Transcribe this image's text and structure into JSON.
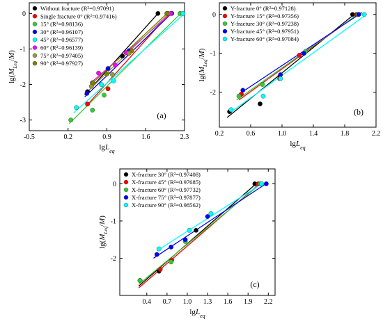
{
  "chart_data": [
    {
      "type": "scatter",
      "panel_label": "(a)",
      "xlabel": "lgLeq",
      "ylabel": "lg(MLeq/M)",
      "xlim": [
        -0.5,
        2.3
      ],
      "ylim": [
        -3.3,
        0.3
      ],
      "xticks": [
        "-0.5",
        "0.2",
        "0.9",
        "1.6",
        "2.3"
      ],
      "yticks": [
        "0",
        "-1",
        "-2",
        "-3"
      ],
      "legend_position": "top-left",
      "series": [
        {
          "name": "Without fracture (R²=0.97091)",
          "color": "#000000",
          "x": [
            0.55,
            0.64,
            1.18,
            1.82
          ],
          "y": [
            -2.2,
            -1.95,
            -1.2,
            0
          ],
          "fit": [
            [
              0.5,
              -2.3
            ],
            [
              1.85,
              0.05
            ]
          ]
        },
        {
          "name": "Single fracture 0° (R²=0.97416)",
          "color": "#ff0000",
          "x": [
            0.55,
            0.92,
            1.28,
            2.0
          ],
          "y": [
            -2.55,
            -2.12,
            -1.12,
            0
          ],
          "fit": [
            [
              0.52,
              -2.62
            ],
            [
              2.05,
              0.03
            ]
          ]
        },
        {
          "name": "15° (R²=0.98136)",
          "color": "#33cc33",
          "x": [
            0.25,
            0.64,
            0.85,
            2.22
          ],
          "y": [
            -3.0,
            -2.72,
            -2.3,
            0
          ],
          "fit": [
            [
              0.22,
              -3.1
            ],
            [
              2.25,
              0.03
            ]
          ]
        },
        {
          "name": "30° (R²=0.96107)",
          "color": "#0000ff",
          "x": [
            0.54,
            0.92,
            1.3,
            2.07
          ],
          "y": [
            -2.25,
            -1.55,
            -1.05,
            0
          ],
          "fit": [
            [
              0.5,
              -2.35
            ],
            [
              2.1,
              0.05
            ]
          ]
        },
        {
          "name": "45° (R²=0.96577)",
          "color": "#00ffff",
          "x": [
            0.35,
            0.8,
            1.02,
            2.27
          ],
          "y": [
            -2.65,
            -2.0,
            -1.9,
            0
          ],
          "fit": [
            [
              0.3,
              -2.8
            ],
            [
              2.3,
              0
            ]
          ]
        },
        {
          "name": "60° (R²=0.96139)",
          "color": "#ff00ff",
          "x": [
            0.75,
            1.05,
            1.25,
            2.05
          ],
          "y": [
            -1.68,
            -1.45,
            -1.1,
            0
          ],
          "fit": [
            [
              0.65,
              -1.9
            ],
            [
              2.1,
              0.05
            ]
          ]
        },
        {
          "name": "75° (R²=0.97405)",
          "color": "#999933",
          "x": [
            0.62,
            1.0,
            1.3,
            2.0
          ],
          "y": [
            -2.05,
            -1.72,
            -1.12,
            0
          ],
          "fit": [
            [
              0.55,
              -2.2
            ],
            [
              2.05,
              0.05
            ]
          ]
        },
        {
          "name": "90° (R²=0.97927)",
          "color": "#808000",
          "x": [
            0.65,
            0.9,
            1.35,
            1.98
          ],
          "y": [
            -1.95,
            -1.7,
            -1.05,
            0
          ],
          "fit": [
            [
              0.58,
              -2.05
            ],
            [
              2.02,
              0.05
            ]
          ]
        }
      ]
    },
    {
      "type": "scatter",
      "panel_label": "(b)",
      "xlabel": "lgLeq",
      "ylabel": "lg(MLeq/M)",
      "xlim": [
        0.2,
        2.2
      ],
      "ylim": [
        -2.9,
        0.3
      ],
      "xticks": [
        "0.2",
        "0.6",
        "1.0",
        "1.4",
        "1.8",
        "2.2"
      ],
      "yticks": [
        "0",
        "-1",
        "-2"
      ],
      "legend_position": "top-left",
      "series": [
        {
          "name": "Y-fracture 0° (R²=0.97128)",
          "color": "#000000",
          "x": [
            0.33,
            0.72,
            0.97,
            1.9
          ],
          "y": [
            -2.5,
            -2.3,
            -1.6,
            0
          ],
          "fit": [
            [
              0.3,
              -2.65
            ],
            [
              1.95,
              0.05
            ]
          ]
        },
        {
          "name": "Y-fracture 15° (R²=0.97356)",
          "color": "#ff0000",
          "x": [
            0.48,
            0.97,
            1.22,
            1.95
          ],
          "y": [
            -2.05,
            -1.65,
            -1.05,
            0
          ],
          "fit": [
            [
              0.45,
              -2.2
            ],
            [
              2.0,
              0.05
            ]
          ]
        },
        {
          "name": "Y-fracture 30° (R²=0.97238)",
          "color": "#33cc33",
          "x": [
            0.45,
            0.75,
            1.3,
            1.97
          ],
          "y": [
            -2.1,
            -1.8,
            -0.95,
            0
          ],
          "fit": [
            [
              0.42,
              -2.2
            ],
            [
              2.0,
              0.05
            ]
          ]
        },
        {
          "name": "Y-fracture 45° (R²=0.97951)",
          "color": "#0000ff",
          "x": [
            0.5,
            0.98,
            1.28,
            1.98
          ],
          "y": [
            -1.95,
            -1.55,
            -1.0,
            0
          ],
          "fit": [
            [
              0.45,
              -2.05
            ],
            [
              2.02,
              0.05
            ]
          ]
        },
        {
          "name": "Y-fracture 60° (R²=0.97084)",
          "color": "#00ffff",
          "x": [
            0.35,
            0.76,
            0.98,
            2.05
          ],
          "y": [
            -2.45,
            -2.1,
            -1.65,
            0
          ],
          "fit": [
            [
              0.32,
              -2.55
            ],
            [
              2.08,
              0
            ]
          ]
        }
      ]
    },
    {
      "type": "scatter",
      "panel_label": "(c)",
      "xlabel": "lgLeq",
      "ylabel": "lg(MLeq/M)",
      "xlim": [
        0.0,
        2.3
      ],
      "ylim": [
        -3.0,
        0.4
      ],
      "xticks": [
        "0.4",
        "0.7",
        "1.0",
        "1.3",
        "1.6",
        "1.9",
        "2.2"
      ],
      "yticks": [
        "0",
        "-1",
        "-2"
      ],
      "legend_position": "top-left",
      "series": [
        {
          "name": "X-fracture 30° (R²=0.97408)",
          "color": "#000000",
          "x": [
            0.3,
            0.58,
            1.13,
            2.0
          ],
          "y": [
            -2.6,
            -2.35,
            -1.25,
            0
          ],
          "fit": [
            [
              0.28,
              -2.75
            ],
            [
              2.05,
              0.05
            ]
          ]
        },
        {
          "name": "X-fracture 45° (R²=0.97685)",
          "color": "#ff0000",
          "x": [
            0.3,
            0.6,
            0.77,
            2.05
          ],
          "y": [
            -2.6,
            -2.3,
            -2.05,
            0
          ],
          "fit": [
            [
              0.28,
              -2.8
            ],
            [
              2.08,
              0.02
            ]
          ]
        },
        {
          "name": "X-fracture 60° (R²=0.97732)",
          "color": "#33cc33",
          "x": [
            0.3,
            0.76,
            0.97,
            2.08
          ],
          "y": [
            -2.6,
            -2.1,
            -1.55,
            0
          ],
          "fit": [
            [
              0.28,
              -2.7
            ],
            [
              2.1,
              0.02
            ]
          ]
        },
        {
          "name": "X-fracture 75° (R²=0.97877)",
          "color": "#0000ff",
          "x": [
            0.55,
            0.76,
            0.97,
            1.3,
            2.17
          ],
          "y": [
            -1.9,
            -1.7,
            -1.5,
            -0.88,
            0
          ],
          "fit": [
            [
              0.5,
              -2.0
            ],
            [
              2.18,
              0.02
            ]
          ]
        },
        {
          "name": "X-fracture 90° (R²=0.98562)",
          "color": "#00ffff",
          "x": [
            0.58,
            1.03,
            1.35,
            2.1
          ],
          "y": [
            -1.75,
            -1.25,
            -0.8,
            0
          ],
          "fit": [
            [
              0.55,
              -1.8
            ],
            [
              2.12,
              0.02
            ]
          ]
        }
      ]
    }
  ]
}
